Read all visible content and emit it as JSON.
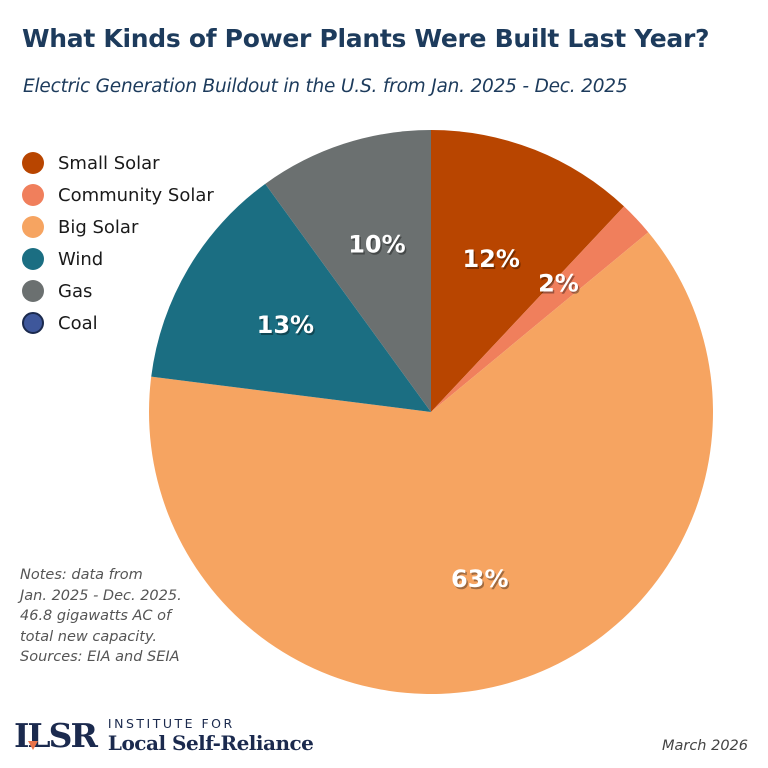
{
  "header": {
    "title": "What Kinds of Power Plants Were Built Last Year?",
    "subtitle": "Electric Generation Buildout in the U.S. from Jan. 2025 - Dec. 2025"
  },
  "chart_data": {
    "type": "pie",
    "title": "What Kinds of Power Plants Were Built Last Year?",
    "subtitle": "Electric Generation Buildout in the U.S. from Jan. 2025 - Dec. 2025",
    "legend_position": "top-left",
    "start_angle": "12 o'clock",
    "direction": "clockwise",
    "categories": [
      "Small Solar",
      "Community Solar",
      "Big Solar",
      "Wind",
      "Gas",
      "Coal"
    ],
    "values": [
      12,
      2,
      63,
      13,
      10,
      0
    ],
    "labels": [
      "12%",
      "2%",
      "63%",
      "13%",
      "10%",
      ""
    ],
    "colors": [
      "#b84500",
      "#f07f5c",
      "#f6a461",
      "#1b6e82",
      "#6b7070",
      "#3e579b"
    ],
    "units": "percent of new capacity"
  },
  "legend": {
    "items": [
      {
        "label": "Small Solar",
        "color": "#b84500"
      },
      {
        "label": "Community Solar",
        "color": "#f07f5c"
      },
      {
        "label": "Big Solar",
        "color": "#f6a461"
      },
      {
        "label": "Wind",
        "color": "#1b6e82"
      },
      {
        "label": "Gas",
        "color": "#6b7070"
      },
      {
        "label": "Coal",
        "color": "#3e579b"
      }
    ]
  },
  "notes": {
    "lines": [
      "Notes: data from",
      "Jan. 2025 - Dec. 2025.",
      "46.8 gigawatts AC of",
      "total new capacity.",
      "Sources: EIA and SEIA"
    ]
  },
  "footer": {
    "logo_mark": "ILSR",
    "logo_top": "INSTITUTE FOR",
    "logo_bottom": "Local Self-Reliance",
    "date": "March 2026"
  }
}
